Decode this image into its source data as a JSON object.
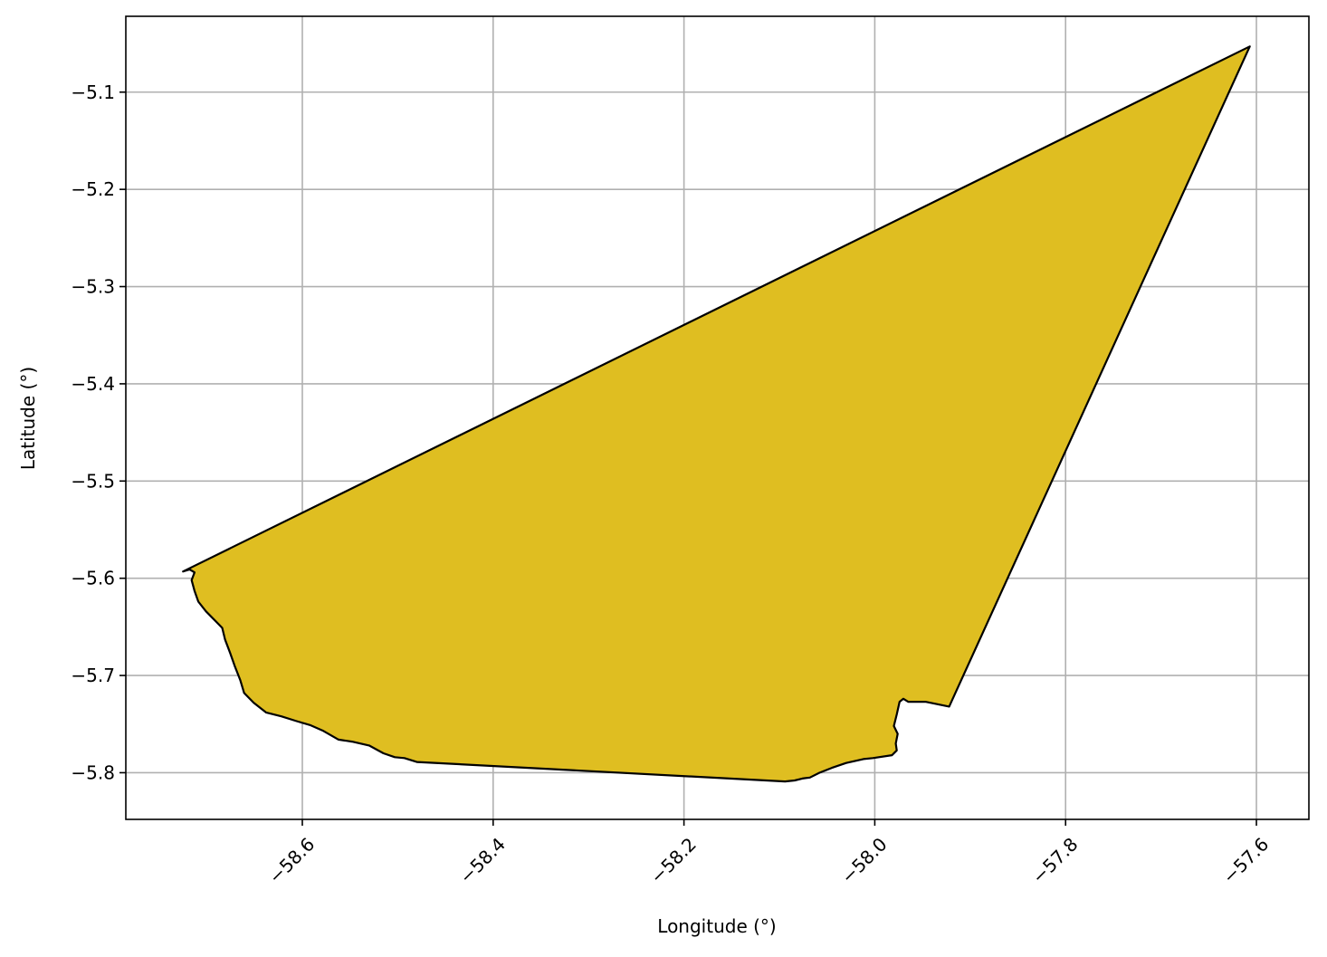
{
  "chart_data": {
    "type": "map",
    "title": "",
    "xlabel": "Longitude (°)",
    "ylabel": "Latitude (°)",
    "xlim": [
      -58.785,
      -57.545
    ],
    "ylim": [
      -5.848,
      -5.022
    ],
    "grid": true,
    "x_ticks": [
      {
        "value": -58.6,
        "label": "−58.6"
      },
      {
        "value": -58.4,
        "label": "−58.4"
      },
      {
        "value": -58.2,
        "label": "−58.2"
      },
      {
        "value": -58.0,
        "label": "−58.0"
      },
      {
        "value": -57.8,
        "label": "−57.8"
      },
      {
        "value": -57.6,
        "label": "−57.6"
      }
    ],
    "y_ticks": [
      {
        "value": -5.1,
        "label": "−5.1"
      },
      {
        "value": -5.2,
        "label": "−5.2"
      },
      {
        "value": -5.3,
        "label": "−5.3"
      },
      {
        "value": -5.4,
        "label": "−5.4"
      },
      {
        "value": -5.5,
        "label": "−5.5"
      },
      {
        "value": -5.6,
        "label": "−5.6"
      },
      {
        "value": -5.7,
        "label": "−5.7"
      },
      {
        "value": -5.8,
        "label": "−5.8"
      }
    ],
    "x_tick_rotation": 45,
    "polygon": {
      "fill": "#dfbe21",
      "edge": "#000000",
      "coordinates": [
        [
          -58.725,
          -5.593
        ],
        [
          -57.607,
          -5.053
        ],
        [
          -57.922,
          -5.732
        ],
        [
          -57.947,
          -5.727
        ],
        [
          -57.965,
          -5.727
        ],
        [
          -57.97,
          -5.724
        ],
        [
          -57.974,
          -5.727
        ],
        [
          -57.977,
          -5.74
        ],
        [
          -57.98,
          -5.752
        ],
        [
          -57.976,
          -5.76
        ],
        [
          -57.978,
          -5.77
        ],
        [
          -57.977,
          -5.777
        ],
        [
          -57.982,
          -5.782
        ],
        [
          -58.002,
          -5.785
        ],
        [
          -58.012,
          -5.786
        ],
        [
          -58.03,
          -5.79
        ],
        [
          -58.045,
          -5.795
        ],
        [
          -58.058,
          -5.8
        ],
        [
          -58.068,
          -5.805
        ],
        [
          -58.076,
          -5.806
        ],
        [
          -58.084,
          -5.808
        ],
        [
          -58.094,
          -5.809
        ],
        [
          -58.48,
          -5.789
        ],
        [
          -58.493,
          -5.785
        ],
        [
          -58.503,
          -5.784
        ],
        [
          -58.515,
          -5.78
        ],
        [
          -58.53,
          -5.772
        ],
        [
          -58.548,
          -5.768
        ],
        [
          -58.562,
          -5.766
        ],
        [
          -58.578,
          -5.757
        ],
        [
          -58.592,
          -5.751
        ],
        [
          -58.606,
          -5.747
        ],
        [
          -58.622,
          -5.742
        ],
        [
          -58.638,
          -5.738
        ],
        [
          -58.651,
          -5.728
        ],
        [
          -58.661,
          -5.718
        ],
        [
          -58.665,
          -5.705
        ],
        [
          -58.671,
          -5.69
        ],
        [
          -58.676,
          -5.676
        ],
        [
          -58.681,
          -5.663
        ],
        [
          -58.684,
          -5.651
        ],
        [
          -58.693,
          -5.642
        ],
        [
          -58.701,
          -5.634
        ],
        [
          -58.709,
          -5.624
        ],
        [
          -58.713,
          -5.613
        ],
        [
          -58.716,
          -5.602
        ],
        [
          -58.713,
          -5.594
        ],
        [
          -58.718,
          -5.591
        ]
      ]
    }
  }
}
